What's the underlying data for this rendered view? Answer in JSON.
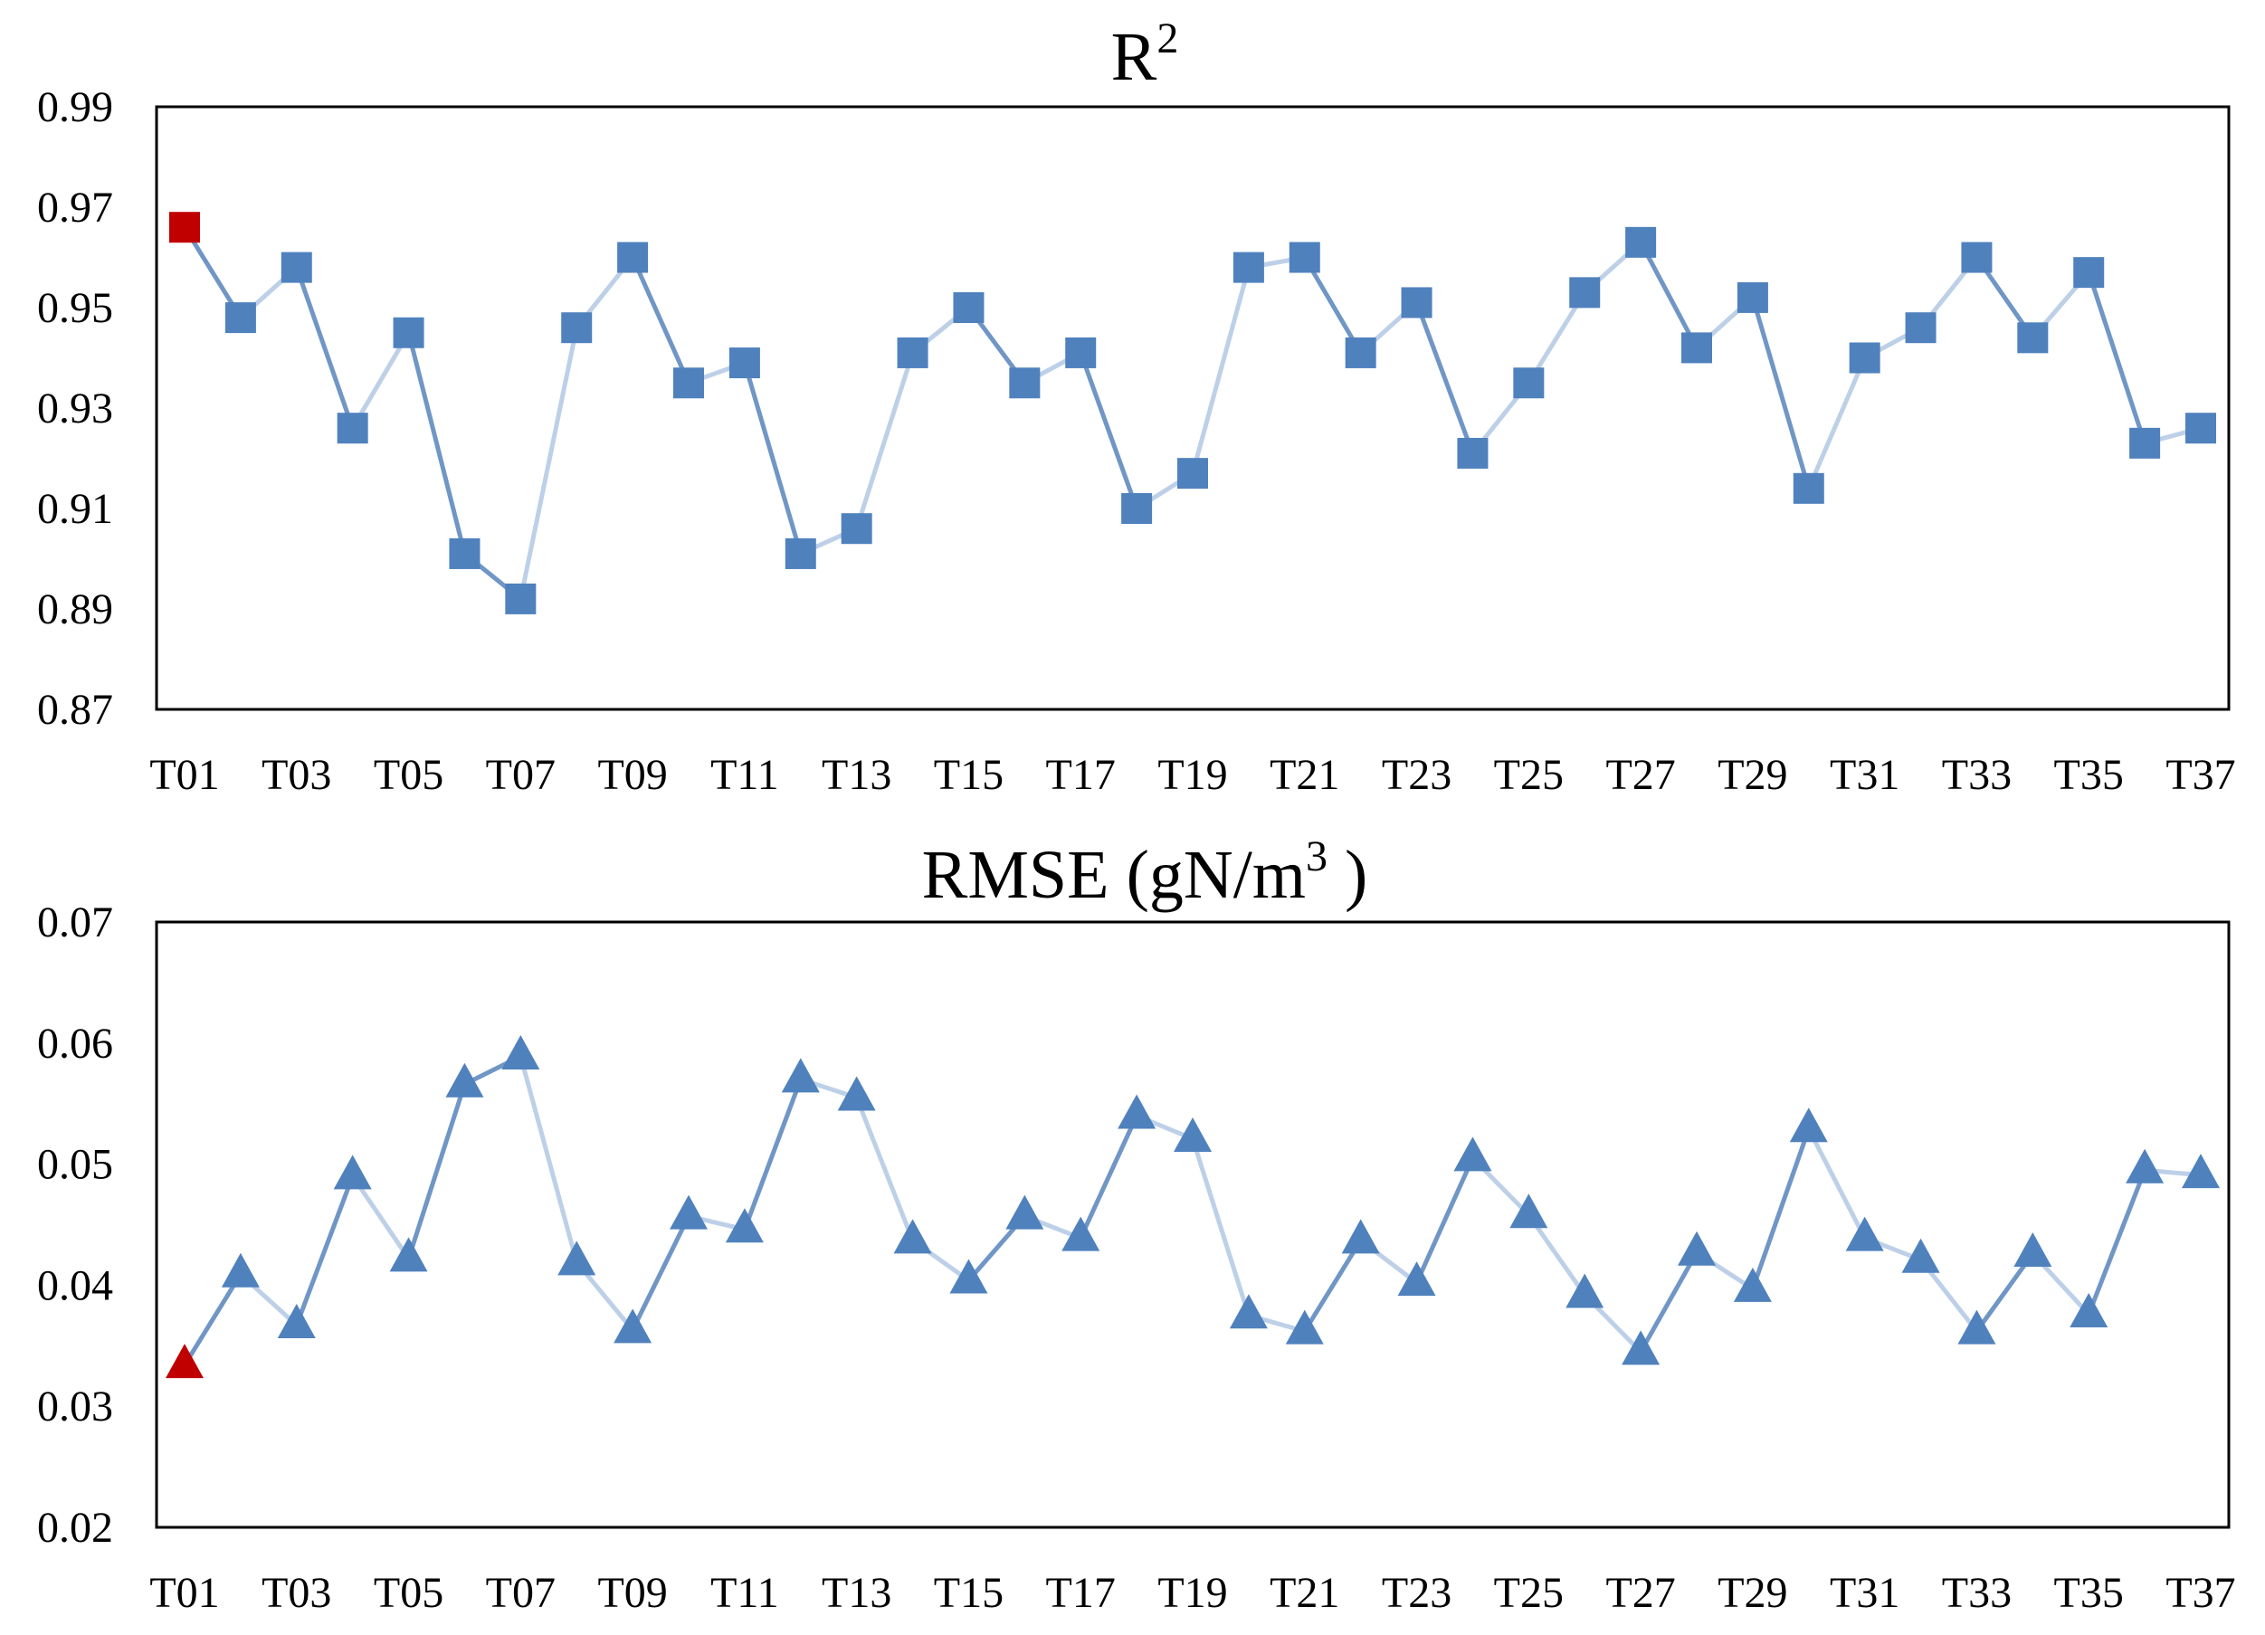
{
  "chart_data": [
    {
      "type": "line",
      "title": "R",
      "title_sup": "2",
      "xlabel": "",
      "ylabel": "",
      "ylim": [
        0.87,
        0.99
      ],
      "yticks": [
        "0.99",
        "0.97",
        "0.95",
        "0.93",
        "0.91",
        "0.89",
        "0.87"
      ],
      "xticks": [
        "T01",
        "T03",
        "T05",
        "T07",
        "T09",
        "T11",
        "T13",
        "T15",
        "T17",
        "T19",
        "T21",
        "T23",
        "T25",
        "T27",
        "T29",
        "T31",
        "T33",
        "T35",
        "T37"
      ],
      "categories": [
        "T01",
        "T02",
        "T03",
        "T04",
        "T05",
        "T06",
        "T07",
        "T08",
        "T09",
        "T10",
        "T11",
        "T12",
        "T13",
        "T14",
        "T15",
        "T16",
        "T17",
        "T18",
        "T19",
        "T20",
        "T21",
        "T22",
        "T23",
        "T24",
        "T25",
        "T26",
        "T27",
        "T28",
        "T29",
        "T30",
        "T31",
        "T32",
        "T33",
        "T34",
        "T35",
        "T36",
        "T37"
      ],
      "marker": "square",
      "highlight_index": 0,
      "colors": {
        "marker": "#4F81BD",
        "highlight": "#C00000",
        "rising": "#BDD0E7",
        "falling": "#7096C6"
      },
      "grid": false,
      "legend": "none",
      "series": [
        {
          "values": [
            0.966,
            0.948,
            0.958,
            0.926,
            0.945,
            0.901,
            0.892,
            0.946,
            0.96,
            0.935,
            0.939,
            0.901,
            0.906,
            0.941,
            0.95,
            0.935,
            0.941,
            0.91,
            0.917,
            0.958,
            0.96,
            0.941,
            0.951,
            0.921,
            0.935,
            0.953,
            0.963,
            0.942,
            0.952,
            0.914,
            0.94,
            0.946,
            0.96,
            0.944,
            0.957,
            0.923,
            0.926
          ]
        }
      ]
    },
    {
      "type": "line",
      "title": "RMSE (gN/m",
      "title_sup": "3",
      "title_end": " )",
      "xlabel": "",
      "ylabel": "",
      "ylim": [
        0.02,
        0.07
      ],
      "yticks": [
        "0.07",
        "0.06",
        "0.05",
        "0.04",
        "0.03",
        "0.02"
      ],
      "xticks": [
        "T01",
        "T03",
        "T05",
        "T07",
        "T09",
        "T11",
        "T13",
        "T15",
        "T17",
        "T19",
        "T21",
        "T23",
        "T25",
        "T27",
        "T29",
        "T31",
        "T33",
        "T35",
        "T37"
      ],
      "categories": [
        "T01",
        "T02",
        "T03",
        "T04",
        "T05",
        "T06",
        "T07",
        "T08",
        "T09",
        "T10",
        "T11",
        "T12",
        "T13",
        "T14",
        "T15",
        "T16",
        "T17",
        "T18",
        "T19",
        "T20",
        "T21",
        "T22",
        "T23",
        "T24",
        "T25",
        "T26",
        "T27",
        "T28",
        "T29",
        "T30",
        "T31",
        "T32",
        "T33",
        "T34",
        "T35",
        "T36",
        "T37"
      ],
      "marker": "triangle",
      "highlight_index": 0,
      "colors": {
        "marker": "#4F81BD",
        "highlight": "#C00000",
        "rising": "#7096C6",
        "falling": "#BDD0E7"
      },
      "grid": false,
      "legend": "none",
      "series": [
        {
          "values": [
            0.0334,
            0.0409,
            0.0367,
            0.049,
            0.0422,
            0.0566,
            0.0589,
            0.0419,
            0.0363,
            0.0457,
            0.0446,
            0.057,
            0.0555,
            0.0437,
            0.0404,
            0.0457,
            0.0439,
            0.054,
            0.0521,
            0.0375,
            0.0362,
            0.0437,
            0.0402,
            0.0505,
            0.0458,
            0.0392,
            0.0345,
            0.0427,
            0.0397,
            0.0529,
            0.0439,
            0.0421,
            0.0362,
            0.0426,
            0.0376,
            0.0495,
            0.0491
          ]
        }
      ]
    }
  ]
}
